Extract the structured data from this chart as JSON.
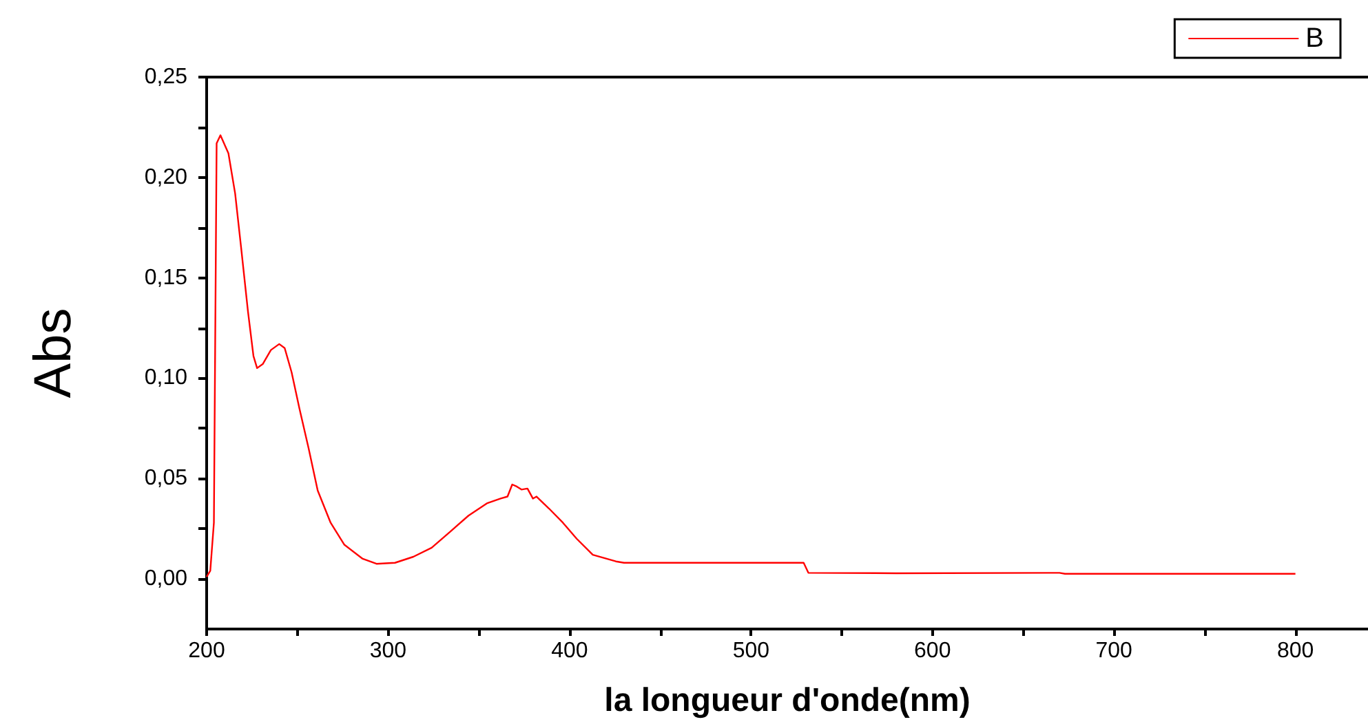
{
  "chart_data": {
    "type": "line",
    "xlabel": "la longueur d'onde(nm)",
    "ylabel": "Abs",
    "legend": "top right",
    "grid": false,
    "marker": "none",
    "line_style": "solid",
    "xlim": [
      200,
      840
    ],
    "ylim": [
      -0.025,
      0.25
    ],
    "xticks": [
      200,
      {
        "value": 250,
        "label": null
      },
      300,
      {
        "value": 350,
        "label": null
      },
      400,
      {
        "value": 450,
        "label": null
      },
      500,
      {
        "value": 550,
        "label": null
      },
      600,
      {
        "value": 650,
        "label": null
      },
      700,
      {
        "value": 750,
        "label": null
      },
      800
    ],
    "yticks": [
      {
        "value": 0,
        "label": "0,00"
      },
      {
        "value": 0.025,
        "label": null
      },
      {
        "value": 0.05,
        "label": "0,05"
      },
      {
        "value": 0.075,
        "label": null
      },
      {
        "value": 0.1,
        "label": "0,10"
      },
      {
        "value": 0.125,
        "label": null
      },
      {
        "value": 0.15,
        "label": "0,15"
      },
      {
        "value": 0.175,
        "label": null
      },
      {
        "value": 0.2,
        "label": "0,20"
      },
      {
        "value": 0.225,
        "label": null
      },
      {
        "value": 0.25,
        "label": "0,25"
      }
    ],
    "series": [
      {
        "name": "B",
        "color": "#ff0000",
        "x": [
          200,
          202,
          204,
          205.5,
          207.6,
          212,
          215.7,
          219,
          222.8,
          225.8,
          227.8,
          230.9,
          235.4,
          240,
          243,
          246.8,
          251.1,
          256.2,
          261.2,
          268.3,
          275.9,
          286,
          293.6,
          303.8,
          313.9,
          324,
          334.2,
          344.3,
          354.4,
          362,
          365.8,
          368.4,
          370.9,
          373.5,
          376.8,
          379.8,
          381.8,
          388.7,
          396.3,
          403.9,
          412.8,
          425.5,
          430,
          529,
          531.6,
          580,
          670,
          673,
          800
        ],
        "values": [
          0.001,
          0.004,
          0.028,
          0.217,
          0.221,
          0.212,
          0.192,
          0.165,
          0.133,
          0.111,
          0.105,
          0.107,
          0.114,
          0.117,
          0.115,
          0.103,
          0.085,
          0.065,
          0.044,
          0.028,
          0.017,
          0.01,
          0.0075,
          0.008,
          0.011,
          0.0155,
          0.0235,
          0.0315,
          0.0376,
          0.04,
          0.041,
          0.047,
          0.046,
          0.0445,
          0.045,
          0.04,
          0.041,
          0.035,
          0.028,
          0.02,
          0.012,
          0.0087,
          0.008,
          0.008,
          0.003,
          0.0028,
          0.003,
          0.0025,
          0.0025
        ]
      }
    ]
  }
}
